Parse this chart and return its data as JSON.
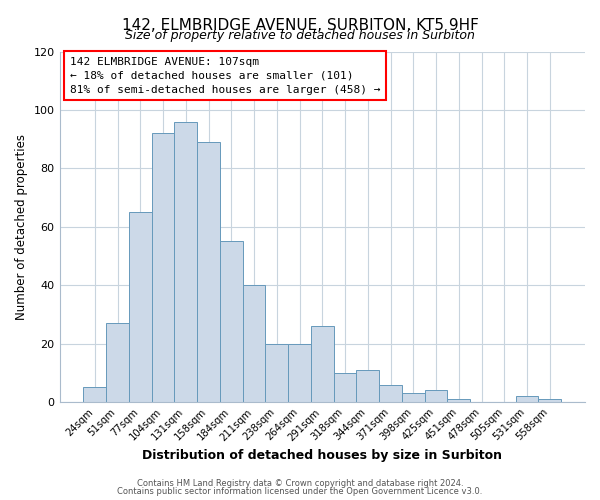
{
  "title": "142, ELMBRIDGE AVENUE, SURBITON, KT5 9HF",
  "subtitle": "Size of property relative to detached houses in Surbiton",
  "xlabel": "Distribution of detached houses by size in Surbiton",
  "ylabel": "Number of detached properties",
  "bar_color": "#ccd9e8",
  "bar_edge_color": "#6699bb",
  "categories": [
    "24sqm",
    "51sqm",
    "77sqm",
    "104sqm",
    "131sqm",
    "158sqm",
    "184sqm",
    "211sqm",
    "238sqm",
    "264sqm",
    "291sqm",
    "318sqm",
    "344sqm",
    "371sqm",
    "398sqm",
    "425sqm",
    "451sqm",
    "478sqm",
    "505sqm",
    "531sqm",
    "558sqm"
  ],
  "values": [
    5,
    27,
    65,
    92,
    96,
    89,
    55,
    40,
    20,
    20,
    26,
    10,
    11,
    6,
    3,
    4,
    1,
    0,
    0,
    2,
    1
  ],
  "ylim": [
    0,
    120
  ],
  "yticks": [
    0,
    20,
    40,
    60,
    80,
    100,
    120
  ],
  "annotation_box_text": "142 ELMBRIDGE AVENUE: 107sqm\n← 18% of detached houses are smaller (101)\n81% of semi-detached houses are larger (458) →",
  "footer_line1": "Contains HM Land Registry data © Crown copyright and database right 2024.",
  "footer_line2": "Contains public sector information licensed under the Open Government Licence v3.0.",
  "background_color": "#ffffff",
  "plot_bg_color": "#ffffff",
  "grid_color": "#c8d4de"
}
